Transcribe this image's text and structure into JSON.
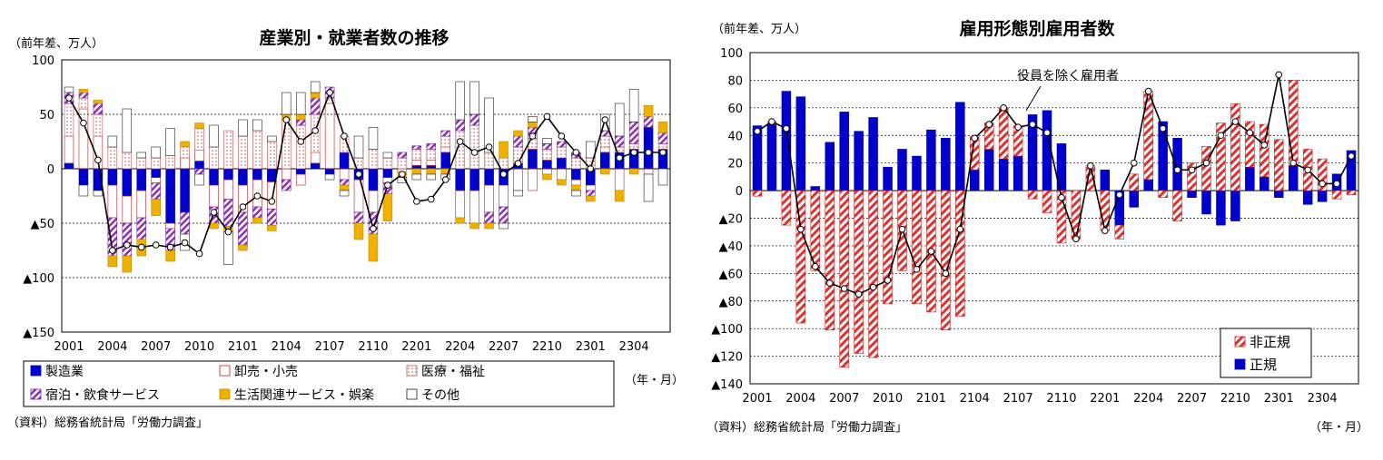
{
  "chart_data": [
    {
      "type": "bar",
      "stacked": true,
      "title": "産業別・就業者数の推移",
      "ylabel": "（前年差、万人）",
      "xlabel": "（年・月）",
      "source": "（資料）総務省統計局「労働力調査」",
      "ylim": [
        -150,
        100
      ],
      "yticks": [
        100,
        50,
        0,
        -50,
        -100,
        -150
      ],
      "ytick_labels": [
        "100",
        "50",
        "0",
        "▲50",
        "▲100",
        "▲150"
      ],
      "categories": [
        "2001",
        "2002",
        "2003",
        "2004",
        "2005",
        "2006",
        "2007",
        "2008",
        "2009",
        "2010",
        "2011",
        "2012",
        "2101",
        "2102",
        "2103",
        "2104",
        "2105",
        "2106",
        "2107",
        "2108",
        "2109",
        "2110",
        "2111",
        "2112",
        "2201",
        "2202",
        "2203",
        "2204",
        "2205",
        "2206",
        "2207",
        "2208",
        "2209",
        "2210",
        "2211",
        "2212",
        "2301",
        "2302",
        "2303",
        "2304",
        "2305",
        "2306"
      ],
      "xtick_labels": [
        "2001",
        "2004",
        "2007",
        "2010",
        "2101",
        "2104",
        "2107",
        "2110",
        "2201",
        "2204",
        "2207",
        "2210",
        "2301",
        "2304"
      ],
      "legend": [
        "製造業",
        "卸売・小売",
        "医療・福祉",
        "宿泊・飲食サービス",
        "生活関連サービス・娯楽",
        "その他"
      ],
      "colors": {
        "製造業": "#0000cc",
        "卸売・小売": "#e03030",
        "医療・福祉": "#e07070",
        "宿泊・飲食サービス": "#9030b0",
        "生活関連サービス・娯楽": "#f0b000",
        "その他": "#ffffff"
      },
      "series": [
        {
          "name": "製造業",
          "values": [
            5,
            -15,
            -20,
            -15,
            -25,
            -20,
            -8,
            -50,
            -40,
            7,
            -15,
            -10,
            -15,
            -10,
            -12,
            0,
            -5,
            5,
            -5,
            15,
            -10,
            -20,
            -8,
            0,
            3,
            3,
            15,
            -20,
            -20,
            -15,
            -15,
            5,
            18,
            8,
            10,
            -10,
            -15,
            15,
            15,
            18,
            38,
            18
          ]
        },
        {
          "name": "卸売・小売",
          "values": [
            25,
            55,
            30,
            -30,
            -25,
            -25,
            -5,
            -5,
            10,
            10,
            -20,
            -18,
            -25,
            -25,
            -25,
            -10,
            -10,
            10,
            60,
            -10,
            -30,
            -20,
            -5,
            -3,
            5,
            5,
            5,
            -25,
            -30,
            -25,
            -20,
            -20,
            -20,
            -5,
            -10,
            -5,
            -5,
            5,
            -20,
            0,
            -5,
            0
          ]
        },
        {
          "name": "医療・福祉",
          "values": [
            30,
            10,
            20,
            20,
            15,
            10,
            10,
            12,
            10,
            20,
            20,
            35,
            30,
            35,
            25,
            45,
            40,
            35,
            5,
            15,
            10,
            18,
            10,
            10,
            10,
            10,
            10,
            35,
            40,
            15,
            10,
            15,
            10,
            10,
            10,
            10,
            10,
            10,
            5,
            5,
            0,
            5
          ]
        },
        {
          "name": "宿泊・飲食サービス",
          "values": [
            10,
            5,
            10,
            -35,
            -30,
            -20,
            -15,
            -20,
            -20,
            -5,
            -15,
            -25,
            -30,
            -10,
            -15,
            -10,
            5,
            15,
            10,
            -5,
            -10,
            -20,
            -10,
            5,
            3,
            5,
            5,
            10,
            10,
            -10,
            -15,
            10,
            10,
            5,
            5,
            5,
            -5,
            5,
            10,
            20,
            10,
            10
          ]
        },
        {
          "name": "生活関連サービス・娯楽",
          "values": [
            0,
            3,
            3,
            -10,
            -15,
            -15,
            -15,
            -10,
            5,
            5,
            -5,
            -5,
            -5,
            -5,
            -5,
            5,
            5,
            5,
            0,
            -5,
            -15,
            -25,
            -25,
            -5,
            -5,
            -5,
            -5,
            -5,
            -5,
            -5,
            15,
            5,
            5,
            -5,
            -5,
            -5,
            -5,
            -5,
            -10,
            -5,
            10,
            10
          ]
        },
        {
          "name": "その他",
          "values": [
            5,
            -10,
            -5,
            10,
            40,
            5,
            10,
            25,
            -15,
            -10,
            20,
            -30,
            15,
            10,
            5,
            20,
            20,
            10,
            -5,
            -5,
            20,
            20,
            5,
            -5,
            -5,
            -5,
            -5,
            35,
            30,
            50,
            -5,
            -5,
            5,
            5,
            0,
            -5,
            15,
            15,
            30,
            30,
            -25,
            -15
          ]
        },
        {
          "name": "就業者数",
          "type": "line",
          "values": [
            65,
            42,
            8,
            -75,
            -70,
            -72,
            -70,
            -72,
            -68,
            -78,
            -40,
            -58,
            -35,
            -25,
            -30,
            45,
            25,
            35,
            70,
            30,
            -5,
            -55,
            -15,
            -5,
            -30,
            -28,
            -10,
            25,
            15,
            20,
            -5,
            5,
            30,
            48,
            30,
            15,
            0,
            45,
            10,
            15,
            15,
            15
          ]
        }
      ]
    },
    {
      "type": "bar",
      "stacked": true,
      "title": "雇用形態別雇用者数",
      "ylabel": "（前年差、万人）",
      "xlabel": "（年・月）",
      "source": "（資料）総務省統計局「労働力調査」",
      "annotation": "役員を除く雇用者",
      "ylim": [
        -140,
        100
      ],
      "yticks": [
        100,
        80,
        60,
        40,
        20,
        0,
        -20,
        -40,
        -60,
        -80,
        -100,
        -120,
        -140
      ],
      "ytick_labels": [
        "100",
        "80",
        "60",
        "40",
        "20",
        "0",
        "▲20",
        "▲40",
        "▲60",
        "▲80",
        "▲100",
        "▲120",
        "▲140"
      ],
      "categories": [
        "2001",
        "2002",
        "2003",
        "2004",
        "2005",
        "2006",
        "2007",
        "2008",
        "2009",
        "2010",
        "2011",
        "2012",
        "2101",
        "2102",
        "2103",
        "2104",
        "2105",
        "2106",
        "2107",
        "2108",
        "2109",
        "2110",
        "2111",
        "2112",
        "2201",
        "2202",
        "2203",
        "2204",
        "2205",
        "2206",
        "2207",
        "2208",
        "2209",
        "2210",
        "2211",
        "2212",
        "2301",
        "2302",
        "2303",
        "2304",
        "2305",
        "2306"
      ],
      "xtick_labels": [
        "2001",
        "2004",
        "2007",
        "2010",
        "2101",
        "2104",
        "2107",
        "2110",
        "2201",
        "2204",
        "2207",
        "2210",
        "2301",
        "2304"
      ],
      "legend": [
        "非正規",
        "正規"
      ],
      "colors": {
        "非正規": "#e03030",
        "正規": "#0000cc"
      },
      "series": [
        {
          "name": "正規",
          "values": [
            47,
            48,
            72,
            68,
            3,
            35,
            57,
            43,
            53,
            17,
            30,
            25,
            44,
            38,
            64,
            15,
            30,
            23,
            25,
            55,
            58,
            34,
            0,
            0,
            15,
            -25,
            -12,
            8,
            50,
            38,
            -5,
            -17,
            -25,
            -22,
            17,
            10,
            -5,
            18,
            -10,
            -8,
            12,
            29
          ]
        },
        {
          "name": "非正規",
          "values": [
            -4,
            2,
            -25,
            -96,
            -58,
            -101,
            -128,
            -118,
            -121,
            -82,
            -58,
            -82,
            -88,
            -101,
            -91,
            24,
            19,
            37,
            22,
            -6,
            -16,
            -38,
            -35,
            18,
            -29,
            -10,
            12,
            64,
            -5,
            -22,
            20,
            32,
            49,
            63,
            33,
            38,
            37,
            62,
            30,
            23,
            -6,
            -3
          ]
        },
        {
          "name": "役員を除く雇用者",
          "type": "line",
          "values": [
            43,
            50,
            45,
            -28,
            -55,
            -67,
            -71,
            -75,
            -70,
            -65,
            -28,
            -57,
            -44,
            -60,
            -28,
            38,
            48,
            60,
            46,
            48,
            42,
            -5,
            -35,
            18,
            -29,
            -3,
            20,
            72,
            45,
            15,
            15,
            20,
            40,
            50,
            42,
            33,
            84,
            20,
            15,
            5,
            5,
            25
          ]
        }
      ]
    }
  ]
}
